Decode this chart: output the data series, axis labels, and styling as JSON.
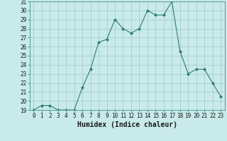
{
  "title": "",
  "xlabel": "Humidex (Indice chaleur)",
  "ylabel": "",
  "x": [
    0,
    1,
    2,
    3,
    4,
    5,
    6,
    7,
    8,
    9,
    10,
    11,
    12,
    13,
    14,
    15,
    16,
    17,
    18,
    19,
    20,
    21,
    22,
    23
  ],
  "y": [
    19,
    19.5,
    19.5,
    19,
    19,
    19,
    21.5,
    23.5,
    26.5,
    26.8,
    29,
    28,
    27.5,
    28,
    30,
    29.5,
    29.5,
    31,
    25.5,
    23,
    23.5,
    23.5,
    22,
    20.5
  ],
  "line_color": "#2e7d6e",
  "marker_color": "#2e7d6e",
  "bg_color": "#c8eaea",
  "grid_color": "#a0c8c8",
  "ylim": [
    19,
    31
  ],
  "xlim": [
    -0.5,
    23.5
  ],
  "yticks": [
    19,
    20,
    21,
    22,
    23,
    24,
    25,
    26,
    27,
    28,
    29,
    30,
    31
  ],
  "xticks": [
    0,
    1,
    2,
    3,
    4,
    5,
    6,
    7,
    8,
    9,
    10,
    11,
    12,
    13,
    14,
    15,
    16,
    17,
    18,
    19,
    20,
    21,
    22,
    23
  ],
  "tick_fontsize": 5.5,
  "label_fontsize": 7
}
